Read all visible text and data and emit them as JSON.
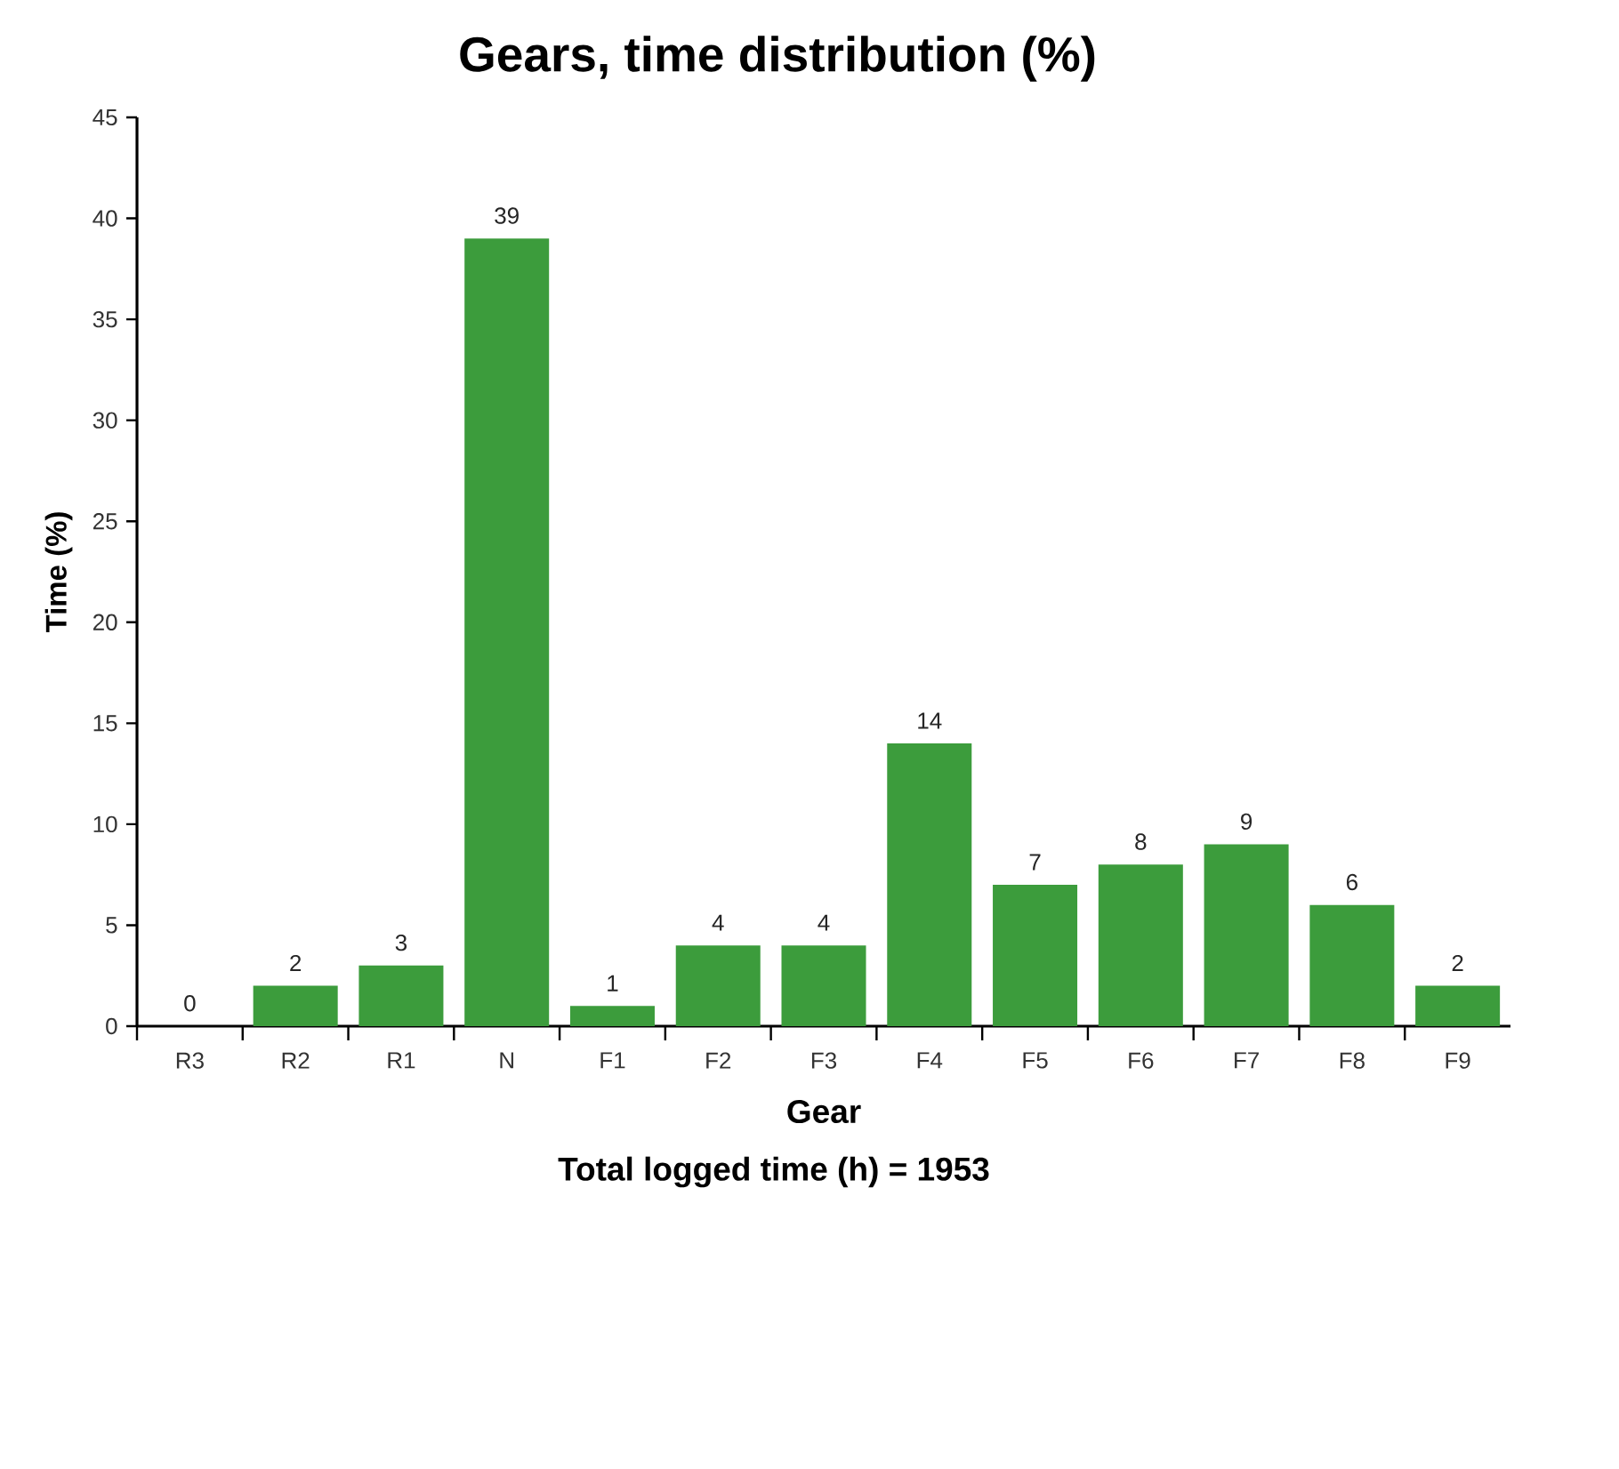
{
  "chart_data": {
    "type": "bar",
    "title": "Gears, time distribution (%)",
    "xlabel": "Gear",
    "ylabel": "Time (%)",
    "annotations": [
      "Total logged time (h) = 1953"
    ],
    "categories": [
      "R3",
      "R2",
      "R1",
      "N",
      "F1",
      "F2",
      "F3",
      "F4",
      "F5",
      "F6",
      "F7",
      "F8",
      "F9"
    ],
    "values": [
      0,
      2,
      3,
      39,
      1,
      4,
      4,
      14,
      7,
      8,
      9,
      6,
      2
    ],
    "color": "#3c9c3c",
    "ylim": [
      0,
      45
    ],
    "yticks": [
      0,
      5,
      10,
      15,
      20,
      25,
      30,
      35,
      40,
      45
    ],
    "data_labels": true
  }
}
